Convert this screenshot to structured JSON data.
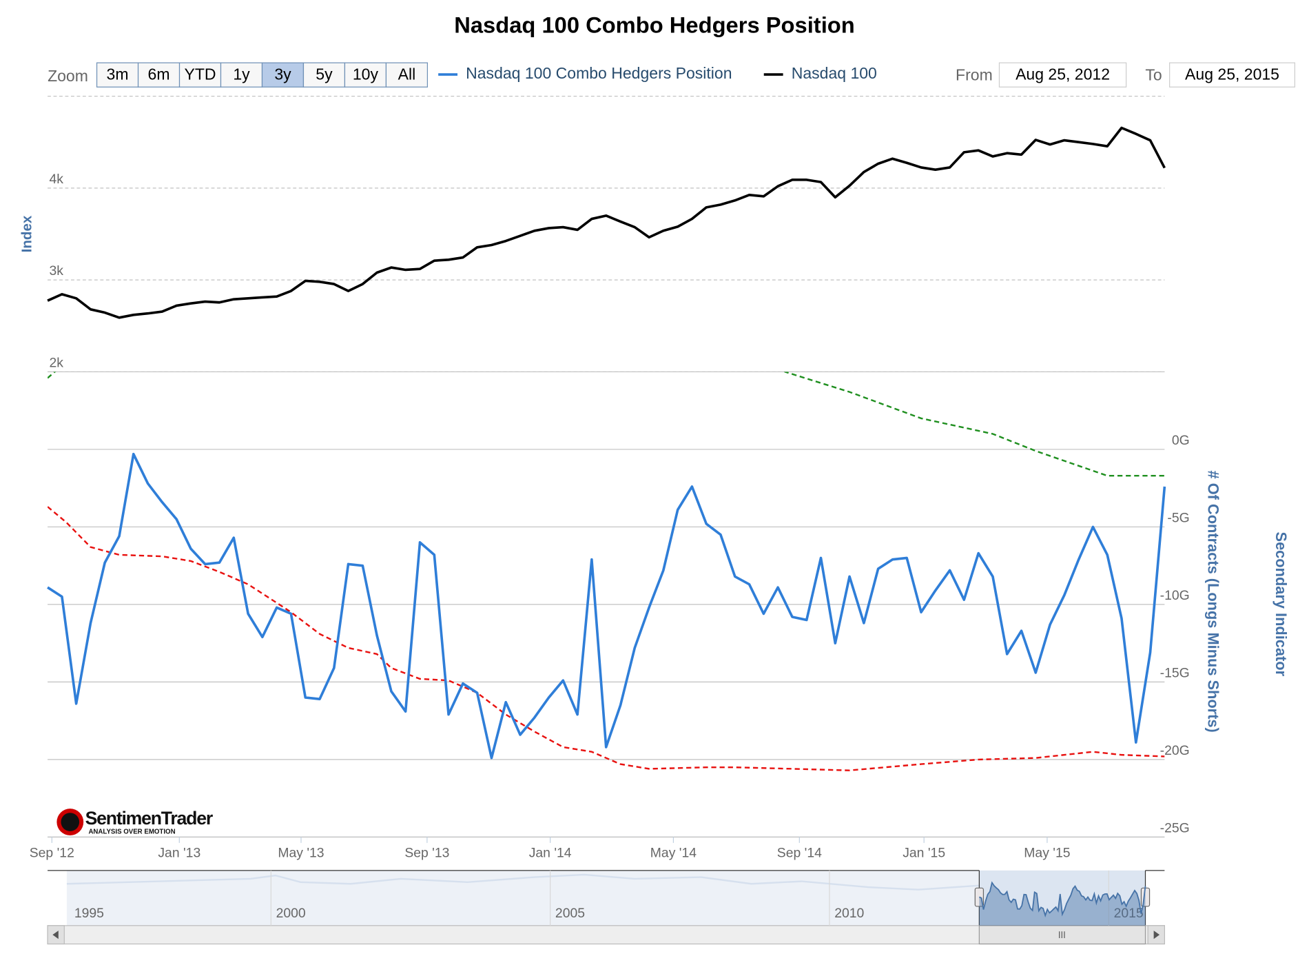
{
  "zoom": {
    "label": "Zoom",
    "buttons": [
      "3m",
      "6m",
      "YTD",
      "1y",
      "3y",
      "5y",
      "10y",
      "All"
    ],
    "selected": 4
  },
  "range": {
    "from_label": "From",
    "from": "Aug 25, 2012",
    "to_label": "To",
    "to": "Aug 25, 2015"
  },
  "logo": {
    "name": "SentimenTrader",
    "tagline": "ANALYSIS OVER EMOTION"
  },
  "chart_data": {
    "type": "line",
    "title": "Nasdaq 100 Combo Hedgers Position",
    "categories": [
      null,
      null,
      null,
      null,
      null,
      null,
      null,
      null,
      null,
      null,
      null,
      null,
      null,
      null,
      null,
      null,
      null,
      null,
      null,
      null,
      null,
      null,
      null,
      null,
      null,
      null,
      null,
      null,
      null,
      null,
      null,
      null,
      null,
      null,
      null,
      null,
      null,
      null,
      null,
      null,
      null,
      null,
      null,
      null,
      null,
      null,
      null,
      null,
      null,
      null,
      null,
      null,
      null,
      null,
      null,
      null,
      null,
      null,
      null,
      null,
      null,
      null,
      null,
      null,
      null,
      null,
      null,
      null,
      null,
      null,
      null,
      null,
      null,
      null,
      null,
      null,
      null,
      null,
      null
    ],
    "xlim": [
      0,
      78
    ],
    "xticks": [
      {
        "value": 0.3,
        "label": "Sep '12"
      },
      {
        "value": 9.2,
        "label": "Jan '13"
      },
      {
        "value": 17.7,
        "label": "May '13"
      },
      {
        "value": 26.5,
        "label": "Sep '13"
      },
      {
        "value": 35.1,
        "label": "Jan '14"
      },
      {
        "value": 43.7,
        "label": "May '14"
      },
      {
        "value": 52.5,
        "label": "Sep '14"
      },
      {
        "value": 61.2,
        "label": "Jan '15"
      },
      {
        "value": 69.8,
        "label": "May '15"
      }
    ],
    "y_label": "Index",
    "ylim": [
      2000,
      5000
    ],
    "yticks": [
      {
        "value": 2000,
        "label": "2k"
      },
      {
        "value": 3000,
        "label": "3k"
      },
      {
        "value": 4000,
        "label": "4k"
      }
    ],
    "y2_label": "# Of Contracts (Longs Minus Shorts)",
    "y3_label": "Secondary Indicator",
    "y2lim": [
      -25,
      5
    ],
    "y2ticks": [
      {
        "value": 0,
        "label": "0G"
      },
      {
        "value": -5,
        "label": "-5G"
      },
      {
        "value": -10,
        "label": "-10G"
      },
      {
        "value": -15,
        "label": "-15G"
      },
      {
        "value": -20,
        "label": "-20G"
      },
      {
        "value": -25,
        "label": "-25G"
      }
    ],
    "series": [
      {
        "name": "Nasdaq 100 Combo Hedgers Position",
        "color": "#2f7ed8",
        "axis": "y2",
        "values": [
          -8.9,
          -9.5,
          -16.4,
          -11.2,
          -7.3,
          -5.6,
          -0.3,
          -2.2,
          -3.4,
          -4.5,
          -6.4,
          -7.4,
          -7.3,
          -5.7,
          -10.6,
          -12.1,
          -10.2,
          -10.6,
          -16.0,
          -16.1,
          -14.1,
          -7.4,
          -7.5,
          -12.0,
          -15.6,
          -16.9,
          -6.0,
          -6.8,
          -17.1,
          -15.1,
          -15.7,
          -19.9,
          -16.3,
          -18.4,
          -17.3,
          -16.0,
          -14.9,
          -17.1,
          -7.1,
          -19.2,
          -16.5,
          -12.8,
          -10.2,
          -7.8,
          -3.9,
          -2.4,
          -4.8,
          -5.5,
          -8.2,
          -8.7,
          -10.6,
          -8.9,
          -10.8,
          -11.0,
          -7.0,
          -12.5,
          -8.2,
          -11.2,
          -7.7,
          -7.1,
          -7.0,
          -10.5,
          -9.1,
          -7.8,
          -9.7,
          -6.7,
          -8.2,
          -13.2,
          -11.7,
          -14.4,
          -11.3,
          -9.4,
          -7.1,
          -5.0,
          -6.8,
          -10.9,
          -18.9,
          -13.1,
          -2.4
        ]
      },
      {
        "name": "Nasdaq 100",
        "color": "#000000",
        "values": [
          2775,
          2845,
          2800,
          2680,
          2645,
          2590,
          2620,
          2635,
          2655,
          2720,
          2745,
          2765,
          2755,
          2790,
          2800,
          2810,
          2820,
          2880,
          2990,
          2980,
          2955,
          2880,
          2955,
          3080,
          3135,
          3110,
          3120,
          3210,
          3220,
          3245,
          3355,
          3380,
          3425,
          3480,
          3535,
          3565,
          3575,
          3545,
          3665,
          3700,
          3635,
          3575,
          3465,
          3535,
          3580,
          3665,
          3790,
          3820,
          3865,
          3925,
          3910,
          4020,
          4090,
          4090,
          4065,
          3900,
          4025,
          4175,
          4265,
          4320,
          4275,
          4225,
          4200,
          4225,
          4390,
          4410,
          4345,
          4380,
          4365,
          4525,
          4475,
          4520,
          4500,
          4480,
          4455,
          4655,
          4590,
          4520,
          4220
        ]
      }
    ],
    "secondary_series": [
      {
        "color": "#e8110f",
        "axis": "y2",
        "dashed": true,
        "x": [
          0,
          1.3,
          3,
          5,
          8,
          10,
          12,
          14,
          16,
          17,
          19,
          21,
          23,
          24,
          26,
          28,
          30,
          32,
          34,
          36,
          38,
          40,
          42,
          46,
          48,
          52,
          56,
          61,
          65,
          69,
          73,
          75,
          78
        ],
        "values": [
          -3.7,
          -4.7,
          -6.3,
          -6.8,
          -6.9,
          -7.2,
          -7.9,
          -8.7,
          -9.9,
          -10.5,
          -11.9,
          -12.8,
          -13.2,
          -14.1,
          -14.8,
          -14.9,
          -15.7,
          -17.1,
          -18.2,
          -19.2,
          -19.5,
          -20.3,
          -20.6,
          -20.5,
          -20.5,
          -20.6,
          -20.7,
          -20.3,
          -20.0,
          -19.9,
          -19.5,
          -19.7,
          -19.8
        ]
      },
      {
        "color": "#1f8f1f",
        "axis": "y2",
        "dashed": true,
        "x": [
          0,
          1,
          51,
          51.5,
          56,
          61,
          66,
          69,
          74,
          76,
          78
        ],
        "values": [
          4.6,
          5.4,
          5.4,
          5.0,
          3.7,
          2.0,
          1.0,
          -0.1,
          -1.7,
          -1.7,
          -1.7
        ]
      }
    ],
    "navigator": {
      "xlim": [
        1996,
        2016
      ],
      "xticks": [
        1995,
        2000,
        2005,
        2010,
        2015
      ]
    }
  }
}
